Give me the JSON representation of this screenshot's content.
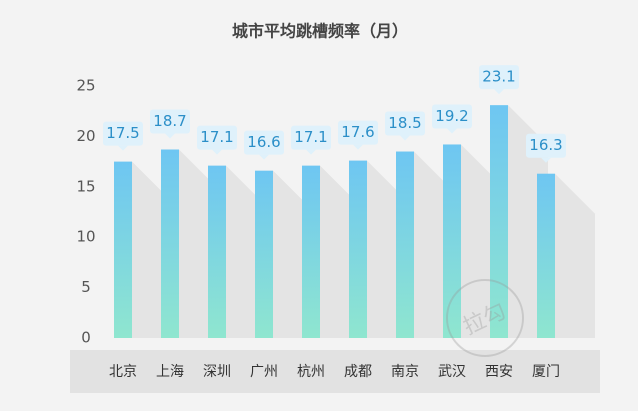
{
  "chart_data": {
    "type": "bar",
    "title": "城市平均跳槽频率（月）",
    "categories": [
      "北京",
      "上海",
      "深圳",
      "广州",
      "杭州",
      "成都",
      "南京",
      "武汉",
      "西安",
      "厦门"
    ],
    "values": [
      17.5,
      18.7,
      17.1,
      16.6,
      17.1,
      17.6,
      18.5,
      19.2,
      23.1,
      16.3
    ],
    "color": "#6ec8f2",
    "ylim": [
      0,
      25
    ],
    "yticks": [
      0,
      5,
      10,
      15,
      20,
      25
    ],
    "grid": false
  },
  "watermark": "拉勾"
}
